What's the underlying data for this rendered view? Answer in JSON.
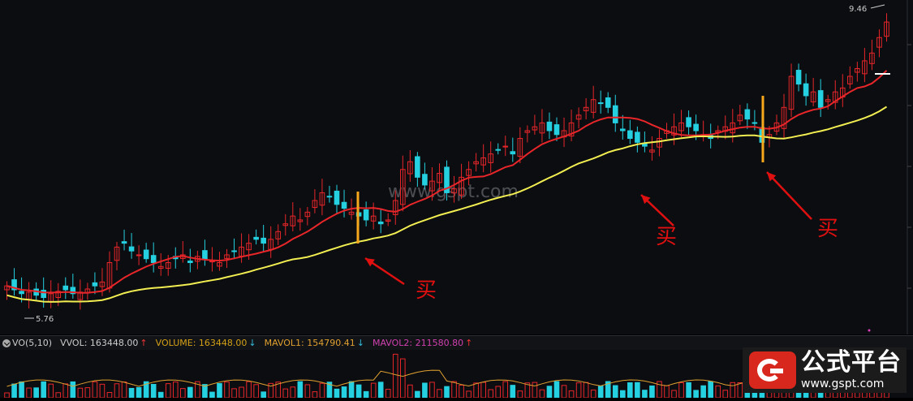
{
  "chart_data": {
    "type": "candlestick",
    "price_range": [
      5.5,
      9.6
    ],
    "price_ticks_shown": false,
    "labels": {
      "high_label": "9.46",
      "low_label": "5.76",
      "watermark": "www.gspt.com",
      "buy_marks": [
        "买",
        "买",
        "买"
      ]
    },
    "ma_lines": [
      {
        "color": "#e8262a"
      },
      {
        "color": "#f2ee52"
      }
    ],
    "candles_summary": "uptrend from ~5.8 to ~9.4",
    "closes": [
      6.0,
      5.95,
      5.9,
      5.92,
      5.88,
      5.85,
      5.9,
      5.93,
      5.95,
      5.9,
      5.92,
      5.96,
      6.0,
      6.05,
      6.3,
      6.5,
      6.55,
      6.45,
      6.4,
      6.35,
      6.3,
      6.25,
      6.3,
      6.35,
      6.4,
      6.3,
      6.38,
      6.35,
      6.32,
      6.3,
      6.4,
      6.45,
      6.5,
      6.55,
      6.6,
      6.55,
      6.6,
      6.7,
      6.8,
      6.9,
      6.85,
      6.95,
      7.1,
      7.2,
      7.15,
      7.05,
      7.0,
      6.95,
      6.9,
      6.85,
      6.9,
      6.8,
      6.85,
      7.1,
      7.5,
      7.6,
      7.4,
      7.3,
      7.35,
      7.45,
      7.2,
      7.25,
      7.4,
      7.5,
      7.6,
      7.65,
      7.7,
      7.75,
      7.8,
      7.7,
      7.9,
      8.0,
      8.05,
      8.1,
      8.0,
      7.95,
      8.0,
      8.1,
      8.2,
      8.3,
      8.4,
      8.35,
      8.3,
      8.1,
      8.0,
      7.9,
      7.85,
      7.8,
      7.75,
      7.9,
      8.0,
      8.05,
      8.1,
      8.05,
      8.0,
      7.95,
      7.9,
      8.0,
      8.05,
      8.1,
      8.2,
      8.15,
      8.1,
      7.85,
      7.95,
      8.1,
      8.3,
      8.7,
      8.6,
      8.45,
      8.5,
      8.3,
      8.4,
      8.5,
      8.55,
      8.7,
      8.8,
      8.9,
      9.0,
      9.2,
      9.4
    ],
    "volume_header": {
      "indicator": "VO(5,10)",
      "vvol": "VVOL: 163448.00",
      "volume": "VOLUME: 163448.00",
      "mavol1": "MAVOL1: 154790.41",
      "mavol2": "MAVOL2: 211580.80"
    },
    "volume_marks": {
      "vvol_arrow": "↑",
      "volume_arrow": "↓",
      "mavol1_arrow": "↓",
      "mavol2_arrow": "↑"
    }
  },
  "branding": {
    "title": "公式平台",
    "url": "www.gspt.com"
  }
}
